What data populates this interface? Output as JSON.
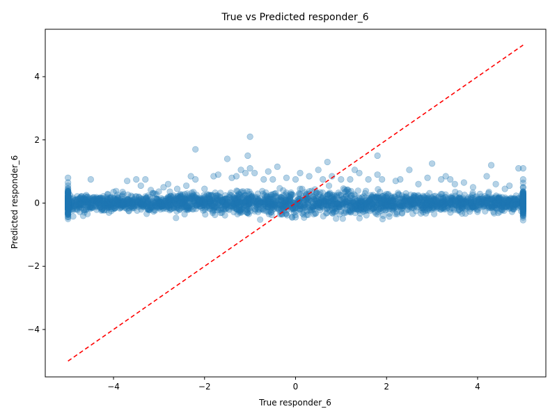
{
  "chart_data": {
    "type": "scatter",
    "title": "True vs Predicted responder_6",
    "xlabel": "True responder_6",
    "ylabel": "Predicted responder_6",
    "xlim": [
      -5.5,
      5.5
    ],
    "ylim": [
      -5.5,
      5.5
    ],
    "xticks": [
      -4,
      -2,
      0,
      2,
      4
    ],
    "yticks": [
      -4,
      -2,
      0,
      2,
      4
    ],
    "xtick_labels": [
      "−4",
      "−2",
      "0",
      "2",
      "4"
    ],
    "ytick_labels": [
      "−4",
      "−2",
      "0",
      "2",
      "4"
    ],
    "grid": false,
    "legend": "none",
    "series": [
      {
        "color": "#1f77b4",
        "alpha": 0.35,
        "marker": "circle",
        "points": [
          [
            -5.0,
            0.8
          ],
          [
            -5.0,
            0.65
          ],
          [
            -5.0,
            0.55
          ],
          [
            -5.0,
            0.4
          ],
          [
            -5.0,
            0.3
          ],
          [
            -5.0,
            0.2
          ],
          [
            -5.0,
            0.1
          ],
          [
            -5.0,
            0.0
          ],
          [
            -5.0,
            -0.1
          ],
          [
            -5.0,
            -0.2
          ],
          [
            -5.0,
            -0.3
          ],
          [
            -4.5,
            0.75
          ],
          [
            -4.6,
            0.25
          ],
          [
            -4.3,
            0.15
          ],
          [
            -4.1,
            -0.3
          ],
          [
            -4.0,
            0.35
          ],
          [
            -3.8,
            0.35
          ],
          [
            -3.7,
            0.7
          ],
          [
            -3.5,
            0.75
          ],
          [
            -3.4,
            0.55
          ],
          [
            -3.3,
            0.75
          ],
          [
            -3.1,
            0.3
          ],
          [
            -2.9,
            0.5
          ],
          [
            -2.8,
            0.6
          ],
          [
            -2.6,
            0.45
          ],
          [
            -2.4,
            0.55
          ],
          [
            -2.3,
            0.85
          ],
          [
            -2.2,
            1.7
          ],
          [
            -2.2,
            0.75
          ],
          [
            -2.0,
            0.45
          ],
          [
            -1.8,
            0.85
          ],
          [
            -1.7,
            0.9
          ],
          [
            -1.5,
            1.4
          ],
          [
            -1.4,
            0.8
          ],
          [
            -1.3,
            0.85
          ],
          [
            -1.2,
            1.05
          ],
          [
            -1.1,
            0.95
          ],
          [
            -1.05,
            1.5
          ],
          [
            -1.0,
            2.1
          ],
          [
            -1.0,
            1.1
          ],
          [
            -0.9,
            0.95
          ],
          [
            -0.7,
            0.75
          ],
          [
            -0.6,
            1.0
          ],
          [
            -0.5,
            0.75
          ],
          [
            -0.4,
            1.15
          ],
          [
            -0.2,
            0.8
          ],
          [
            0.0,
            0.75
          ],
          [
            0.1,
            0.95
          ],
          [
            0.3,
            0.85
          ],
          [
            0.5,
            1.05
          ],
          [
            0.6,
            0.75
          ],
          [
            0.7,
            1.3
          ],
          [
            0.8,
            0.85
          ],
          [
            1.0,
            0.75
          ],
          [
            1.2,
            0.75
          ],
          [
            1.3,
            1.05
          ],
          [
            1.4,
            0.95
          ],
          [
            1.6,
            0.75
          ],
          [
            1.8,
            0.9
          ],
          [
            1.8,
            1.5
          ],
          [
            1.9,
            0.75
          ],
          [
            2.2,
            0.7
          ],
          [
            2.3,
            0.75
          ],
          [
            2.5,
            1.05
          ],
          [
            2.7,
            0.6
          ],
          [
            2.9,
            0.8
          ],
          [
            3.0,
            1.25
          ],
          [
            3.2,
            0.75
          ],
          [
            3.3,
            0.85
          ],
          [
            3.4,
            0.75
          ],
          [
            3.5,
            0.6
          ],
          [
            3.7,
            0.65
          ],
          [
            3.9,
            0.5
          ],
          [
            4.2,
            0.85
          ],
          [
            4.3,
            1.2
          ],
          [
            4.4,
            0.6
          ],
          [
            4.6,
            0.45
          ],
          [
            4.7,
            0.55
          ],
          [
            4.9,
            1.1
          ],
          [
            5.0,
            1.1
          ],
          [
            5.0,
            0.75
          ],
          [
            5.0,
            0.5
          ],
          [
            5.0,
            0.35
          ],
          [
            5.0,
            0.2
          ],
          [
            5.0,
            0.05
          ],
          [
            5.0,
            -0.1
          ],
          [
            5.0,
            -0.2
          ],
          [
            -0.3,
            -0.35
          ],
          [
            0.0,
            -0.45
          ],
          [
            0.4,
            -0.35
          ],
          [
            -1.2,
            -0.3
          ],
          [
            1.1,
            -0.3
          ]
        ]
      }
    ],
    "reference_line": {
      "color": "#ff0000",
      "style": "dashed",
      "from": [
        -5,
        -5
      ],
      "to": [
        5,
        5
      ]
    }
  }
}
